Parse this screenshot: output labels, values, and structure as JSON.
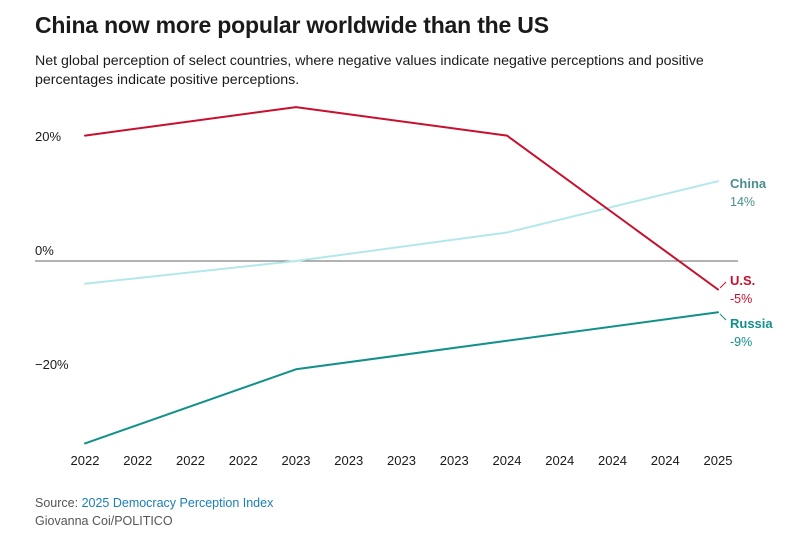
{
  "title": "China now more popular worldwide than the US",
  "subtitle": "Net global perception of select countries, where negative values indicate negative perceptions and positive percentages indicate positive perceptions.",
  "footer": {
    "source_prefix": "Source: ",
    "source_link": "2025 Democracy Perception Index",
    "credit": "Giovanna Coi/POLITICO"
  },
  "chart_data": {
    "type": "line",
    "title": "China now more popular worldwide than the US",
    "subtitle": "Net global perception of select countries, where negative values indicate negative perceptions and positive percentages indicate positive perceptions.",
    "xlabel": "",
    "ylabel": "",
    "x_tick_labels": [
      "2022",
      "2022",
      "2022",
      "2022",
      "2023",
      "2023",
      "2023",
      "2023",
      "2024",
      "2024",
      "2024",
      "2024",
      "2025"
    ],
    "x": [
      2022,
      2023,
      2024,
      2025
    ],
    "ylim": [
      -33,
      27
    ],
    "y_ticks": [
      {
        "value": 20,
        "label": "20%"
      },
      {
        "value": 0,
        "label": "0%"
      },
      {
        "value": -20,
        "label": "−20%"
      }
    ],
    "grid": false,
    "legend": "direct labels at line ends (right)",
    "series": [
      {
        "name": "U.S.",
        "values": [
          22,
          27,
          22,
          -5
        ],
        "end_label": "-5%",
        "color": "#c8102e"
      },
      {
        "name": "China",
        "values": [
          -4,
          0,
          5,
          14
        ],
        "end_label": "14%",
        "color": "#b3e8ea",
        "label_color": "#4a8e90"
      },
      {
        "name": "Russia",
        "values": [
          -32,
          -19,
          -14,
          -9
        ],
        "end_label": "-9%",
        "color": "#12908a",
        "label_color": "#12908a"
      }
    ]
  },
  "colors": {
    "zero_line": "#666666",
    "text": "#1a1a1a",
    "footer": "#555555",
    "link": "#1a7fb5"
  }
}
